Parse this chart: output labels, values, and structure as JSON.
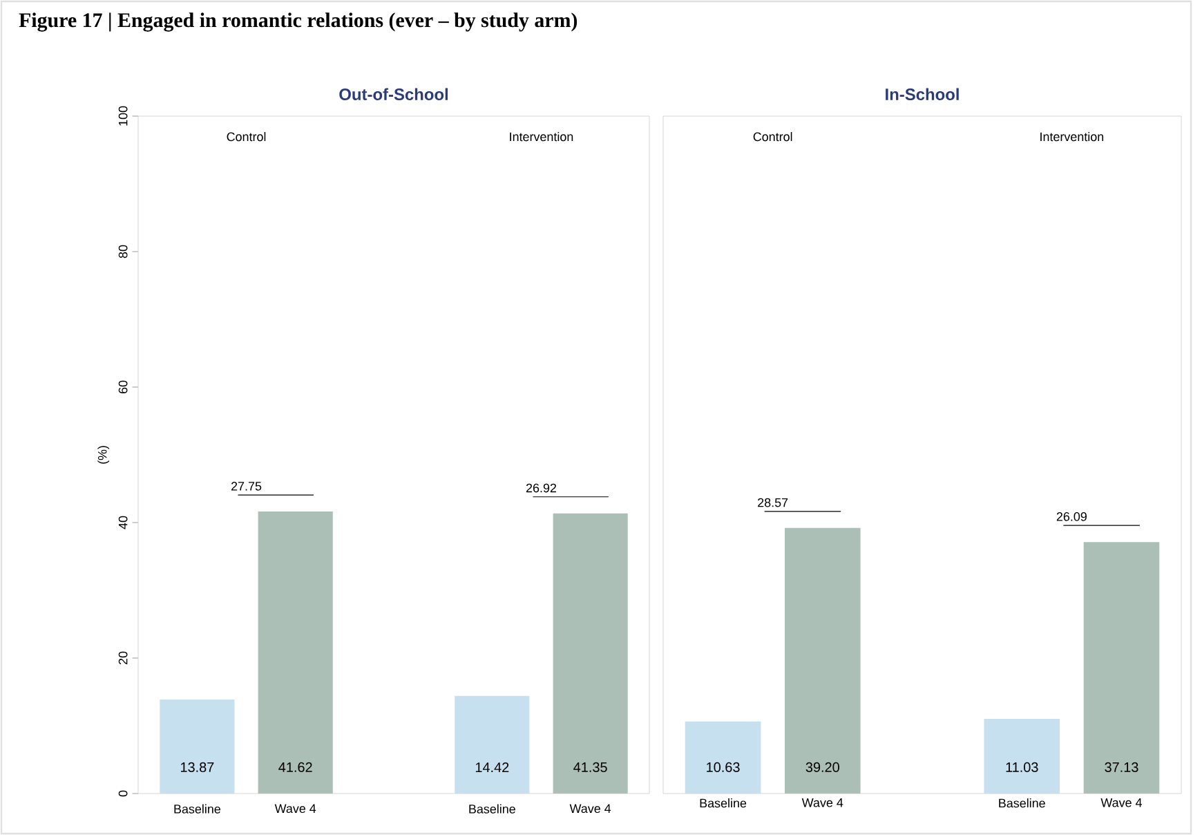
{
  "chart_data": [
    {
      "type": "bar",
      "title": "Figure 17 | Engaged in romantic relations (ever – by study arm)",
      "subtitle": "Out-of-School",
      "ylabel": "(%)",
      "categories": [
        "Control",
        "Intervention"
      ],
      "ylim": [
        0,
        100
      ],
      "yticks": [
        0,
        20,
        40,
        60,
        80,
        100
      ],
      "series": [
        {
          "name": "Baseline",
          "color": "#c6e0ef",
          "values": [
            13.87,
            14.42
          ],
          "value_labels": [
            "13.87",
            "14.42"
          ]
        },
        {
          "name": "Wave 4",
          "color": "#abbfb7",
          "values": [
            41.62,
            41.35
          ],
          "value_labels": [
            "41.62",
            "41.35"
          ]
        }
      ],
      "annotations": [
        "27.75",
        "26.92"
      ]
    },
    {
      "type": "bar",
      "title": "In-School",
      "categories": [
        "Control",
        "Intervention"
      ],
      "ylim": [
        0,
        100
      ],
      "tick_labels": "x",
      "series": [
        {
          "name": "Baseline",
          "color": "#c6e0ef",
          "values": [
            10.63,
            11.03
          ],
          "value_labels": [
            "10.63",
            "11.03"
          ]
        },
        {
          "name": "Wave 4",
          "color": "#abbfb7",
          "values": [
            39.2,
            37.13
          ],
          "value_labels": [
            "39.20",
            "37.13"
          ]
        }
      ],
      "annotations": [
        "28.57",
        "26.09"
      ]
    }
  ]
}
